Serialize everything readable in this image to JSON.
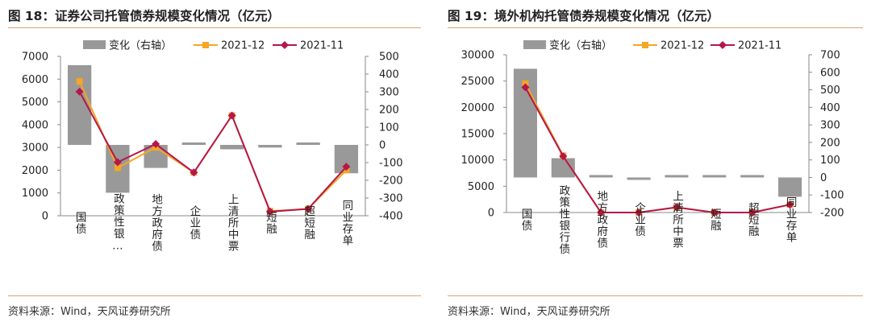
{
  "colors": {
    "bar": "#999999",
    "line_dec": "#f5a623",
    "line_nov": "#b5174b",
    "accent_rule": "#e0a070"
  },
  "charts": [
    {
      "title": "图 18：证券公司托管债券规模变化情况（亿元）",
      "source": "资料来源：Wind，天风证券研究所",
      "chart_data": {
        "type": "bar",
        "categories": [
          "国债",
          "政策性银…",
          "地方政府债",
          "企业债",
          "上清所中票",
          "短融",
          "超短融",
          "同业存单"
        ],
        "legend": [
          "变化（右轴）",
          "2021-12",
          "2021-11"
        ],
        "legend_position": "top",
        "y_left": {
          "min": 0,
          "max": 7000,
          "ticks": [
            0,
            1000,
            2000,
            3000,
            4000,
            5000,
            6000,
            7000
          ]
        },
        "y_right": {
          "min": -400,
          "max": 500,
          "ticks": [
            -400,
            -300,
            -200,
            -100,
            0,
            100,
            200,
            300,
            400,
            500
          ]
        },
        "series": [
          {
            "name": "变化（右轴）",
            "axis": "right",
            "kind": "bar",
            "values": [
              450,
              -270,
              -130,
              10,
              -25,
              -15,
              5,
              -160
            ]
          },
          {
            "name": "2021-12",
            "axis": "left",
            "kind": "line",
            "values": [
              5900,
              2100,
              3000,
              1900,
              4400,
              200,
              300,
              2000
            ]
          },
          {
            "name": "2021-11",
            "axis": "left",
            "kind": "line",
            "values": [
              5450,
              2350,
              3150,
              1900,
              4400,
              180,
              300,
              2150
            ]
          }
        ],
        "grid": false
      }
    },
    {
      "title": "图 19：境外机构托管债券规模变化情况（亿元）",
      "source": "资料来源：Wind，天风证券研究所",
      "chart_data": {
        "type": "bar",
        "categories": [
          "国债",
          "政策性银行债",
          "地方政府债",
          "企业债",
          "上清所中票",
          "短融",
          "超短融",
          "同业存单"
        ],
        "legend": [
          "变化（右轴）",
          "2021-12",
          "2021-11"
        ],
        "legend_position": "top",
        "y_left": {
          "min": 0,
          "max": 30000,
          "ticks": [
            0,
            5000,
            10000,
            15000,
            20000,
            25000,
            30000
          ]
        },
        "y_right": {
          "min": -200,
          "max": 700,
          "ticks": [
            -200,
            -100,
            0,
            100,
            200,
            300,
            400,
            500,
            600,
            700
          ]
        },
        "series": [
          {
            "name": "变化（右轴）",
            "axis": "right",
            "kind": "bar",
            "values": [
              620,
              110,
              5,
              -5,
              1,
              1,
              1,
              -110
            ]
          },
          {
            "name": "2021-12",
            "axis": "left",
            "kind": "line",
            "values": [
              24500,
              10800,
              0,
              0,
              1000,
              0,
              0,
              1500
            ]
          },
          {
            "name": "2021-11",
            "axis": "left",
            "kind": "line",
            "values": [
              23800,
              10700,
              0,
              0,
              1000,
              0,
              0,
              1500
            ]
          }
        ],
        "grid": false
      }
    }
  ]
}
